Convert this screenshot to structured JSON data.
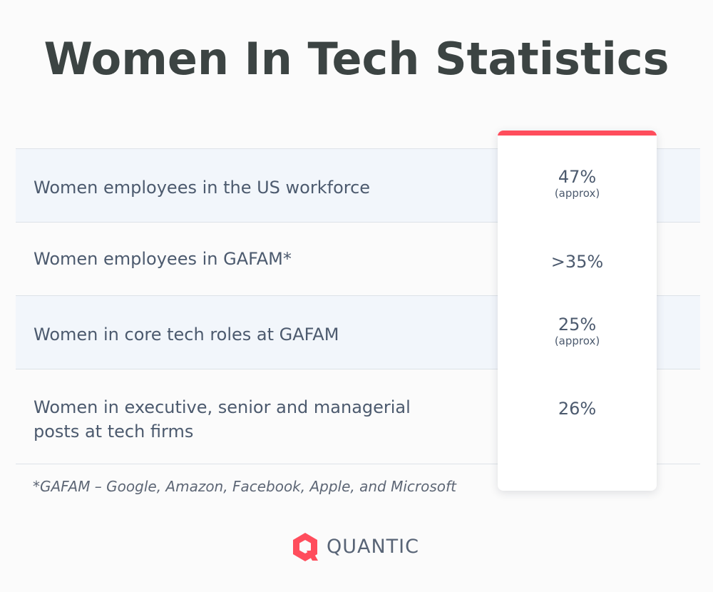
{
  "title": "Women In Tech Statistics",
  "accent_color": "#ff4d5c",
  "chart_data": {
    "type": "table",
    "title": "Women In Tech Statistics",
    "rows": [
      {
        "label": "Women employees in the US workforce",
        "value": "47%",
        "note": "(approx)"
      },
      {
        "label": "Women employees in GAFAM*",
        "value": ">35%",
        "note": ""
      },
      {
        "label": "Women in core tech roles at GAFAM",
        "value": "25%",
        "note": "(approx)"
      },
      {
        "label": "Women in executive, senior and managerial posts at tech firms",
        "value": "26%",
        "note": ""
      }
    ]
  },
  "footnote": "*GAFAM – Google, Amazon, Facebook, Apple, and Microsoft",
  "brand": {
    "name": "QUANTIC",
    "logo_icon": "quantic-logo-icon"
  }
}
